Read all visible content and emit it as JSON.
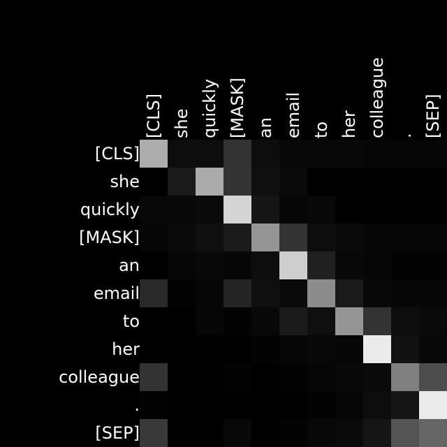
{
  "chart_data": {
    "type": "heatmap",
    "title": "",
    "xlabel": "",
    "ylabel": "",
    "x_tokens": [
      "[CLS]",
      "she",
      "quickly",
      "[MASK]",
      "an",
      "email",
      "to",
      "her",
      "colleague",
      ".",
      "[SEP]"
    ],
    "y_tokens": [
      "[CLS]",
      "she",
      "quickly",
      "[MASK]",
      "an",
      "email",
      "to",
      "her",
      "colleague",
      ".",
      "[SEP]"
    ],
    "value_range": [
      0,
      1
    ],
    "colormap": "gray",
    "grid": false,
    "values": [
      [
        0.68,
        0.05,
        0.05,
        0.2,
        0.05,
        0.03,
        0.03,
        0.03,
        0.02,
        0.02,
        0.02
      ],
      [
        0.0,
        0.1,
        0.67,
        0.2,
        0.06,
        0.04,
        0.0,
        0.0,
        0.0,
        0.0,
        0.0
      ],
      [
        0.03,
        0.03,
        0.04,
        0.84,
        0.08,
        0.02,
        0.03,
        0.0,
        0.0,
        0.0,
        0.0
      ],
      [
        0.02,
        0.04,
        0.06,
        0.1,
        0.58,
        0.2,
        0.05,
        0.04,
        0.02,
        0.02,
        0.02
      ],
      [
        0.0,
        0.02,
        0.03,
        0.02,
        0.05,
        0.81,
        0.12,
        0.03,
        0.02,
        0.01,
        0.01
      ],
      [
        0.16,
        0.01,
        0.02,
        0.14,
        0.06,
        0.04,
        0.55,
        0.1,
        0.03,
        0.02,
        0.02
      ],
      [
        0.0,
        0.0,
        0.02,
        0.01,
        0.03,
        0.1,
        0.06,
        0.58,
        0.2,
        0.05,
        0.04
      ],
      [
        0.0,
        0.0,
        0.0,
        0.0,
        0.01,
        0.02,
        0.03,
        0.02,
        0.92,
        0.07,
        0.03
      ],
      [
        0.2,
        0.0,
        0.0,
        0.01,
        0.0,
        0.01,
        0.02,
        0.03,
        0.04,
        0.5,
        0.3
      ],
      [
        0.01,
        0.0,
        0.0,
        0.0,
        0.0,
        0.0,
        0.01,
        0.02,
        0.05,
        0.08,
        0.92
      ],
      [
        0.22,
        0.0,
        0.0,
        0.03,
        0.0,
        0.01,
        0.03,
        0.04,
        0.08,
        0.33,
        0.4
      ]
    ]
  }
}
